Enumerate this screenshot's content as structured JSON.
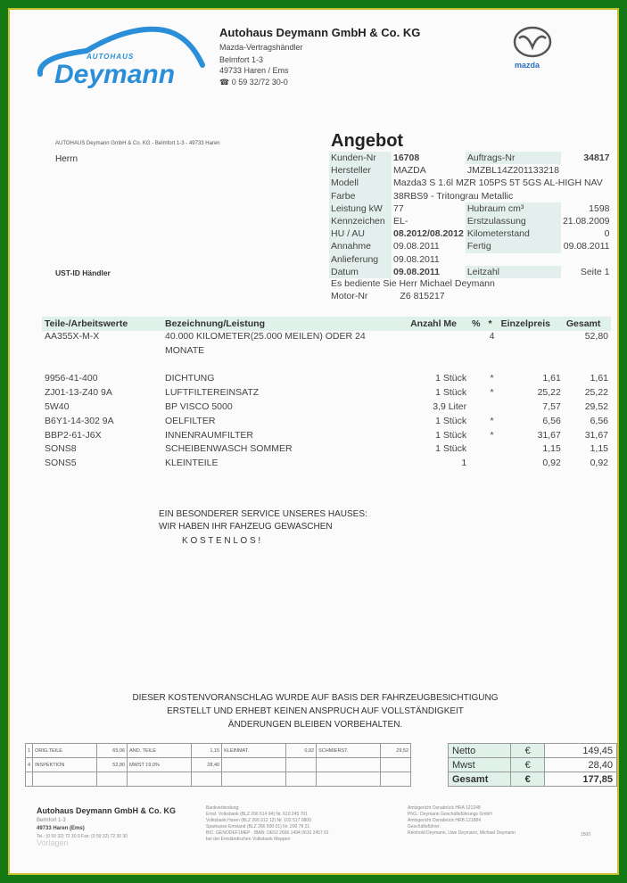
{
  "brand": {
    "logo_small": "AUTOHAUS",
    "logo_big": "Deymann",
    "mazda": "mazda",
    "accent": "#2a8fd8",
    "border": "#157a14"
  },
  "header": {
    "company": "Autohaus Deymann GmbH & Co. KG",
    "line1": "Mazda-Vertragshändler",
    "line2": "Belmfort 1-3",
    "line3": "49733 Haren / Ems",
    "phone": "0 59 32/72 30-0"
  },
  "address": {
    "sender": "AUTOHAUS Deymann GmbH & Co. KG - Belmfort 1-3 - 49733 Haren",
    "salutation": "Herrn",
    "ust": "UST-ID Händler"
  },
  "offer": {
    "title": "Angebot",
    "rows": [
      [
        "Kunden-Nr",
        "16708",
        "Auftrags-Nr",
        "34817"
      ],
      [
        "Hersteller",
        "MAZDA",
        "JMZBL14Z201133218",
        ""
      ],
      [
        "Modell",
        "Mazda3 S 1.6l MZR 105PS 5T 5GS AL-HIGH NAV",
        "",
        ""
      ],
      [
        "Farbe",
        "38RBS9 - Tritongrau Metallic",
        "",
        ""
      ],
      [
        "Leistung kW",
        "77",
        "Hubraum cm³",
        "1598"
      ],
      [
        "Kennzeichen",
        "EL-",
        "Erstzulassung",
        "21.08.2009"
      ],
      [
        "HU / AU",
        "08.2012/08.2012",
        "Kilometerstand",
        "0"
      ],
      [
        "Annahme",
        "09.08.2011",
        "Fertig",
        "09.08.2011"
      ],
      [
        "Anlieferung",
        "09.08.2011",
        "",
        ""
      ],
      [
        "Datum",
        "09.08.2011",
        "Leitzahl",
        "Seite   1"
      ]
    ],
    "served_by": "Es bediente Sie Herr Michael Deymann",
    "motor_label": "Motor-Nr",
    "motor_value": "Z6   815217"
  },
  "items": {
    "headers": [
      "Teile-/Arbeitswerte",
      "Bezeichnung/Leistung",
      "Anzahl Me",
      "%",
      "*",
      "Einzelpreis",
      "Gesamt"
    ],
    "rows": [
      [
        "AA355X-M-X",
        "40.000 KILOMETER(25.000 MEILEN) ODER 24",
        "",
        "",
        "4",
        "",
        "52,80"
      ],
      [
        "",
        "MONATE",
        "",
        "",
        "",
        "",
        ""
      ],
      [
        "",
        "",
        "",
        "",
        "",
        "",
        ""
      ],
      [
        "9956-41-400",
        "DICHTUNG",
        "1 Stück",
        "",
        "*",
        "1,61",
        "1,61"
      ],
      [
        "ZJ01-13-Z40 9A",
        "LUFTFILTEREINSATZ",
        "1 Stück",
        "",
        "*",
        "25,22",
        "25,22"
      ],
      [
        "5W40",
        "BP VISCO 5000",
        "3,9 Liter",
        "",
        "",
        "7,57",
        "29,52"
      ],
      [
        "B6Y1-14-302 9A",
        "OELFILTER",
        "1 Stück",
        "",
        "*",
        "6,56",
        "6,56"
      ],
      [
        "BBP2-61-J6X",
        "INNENRAUMFILTER",
        "1 Stück",
        "",
        "*",
        "31,67",
        "31,67"
      ],
      [
        "SONS8",
        "SCHEIBENWASCH SOMMER",
        "1 Stück",
        "",
        "",
        "1,15",
        "1,15"
      ],
      [
        "SONS5",
        "KLEINTEILE",
        "1",
        "",
        "",
        "0,92",
        "0,92"
      ]
    ]
  },
  "service": [
    "EIN BESONDERER SERVICE UNSERES HAUSES:",
    "WIR HABEN IHR FAHZEUG GEWASCHEN",
    "K O S T E N L O S  !"
  ],
  "disclaimer": [
    "DIESER KOSTENVORANSCHLAG WURDE AUF BASIS DER FAHRZEUGBESICHTIGUNG",
    "ERSTELLT UND ERHEBT KEINEN ANSPRUCH AUF VOLLSTÄNDIGKEIT",
    "ÄNDERUNGEN BLEIBEN VORBEHALTEN."
  ],
  "summary": {
    "rows": [
      [
        "1",
        "ORIG.TEILE",
        "65,06",
        "AND. TEILE",
        "1,15",
        "KLEINMAT.",
        "0,92",
        "SCHMIERST.",
        "29,52"
      ],
      [
        "4",
        "INSPEKTION",
        "52,80",
        "MWST 19,0%",
        "28,40",
        "",
        "",
        "",
        ""
      ],
      [
        "",
        "",
        "",
        "",
        "",
        "",
        "",
        "",
        ""
      ]
    ],
    "totals": [
      [
        "Netto",
        "€",
        "149,45"
      ],
      [
        "Mwst",
        "€",
        "28,40"
      ],
      [
        "Gesamt",
        "€",
        "177,85"
      ]
    ]
  },
  "footer": {
    "company": "Autohaus Deymann GmbH & Co. KG",
    "street": "Belmfort 1-3",
    "city": "49733 Haren (Ems)",
    "tel": "Tel.: (0 59 32) 72 30 0    Fax: (0 59 32) 72 30 30",
    "bank": [
      "Bankverbindung:",
      "Emsl. Volksbank (BLZ 266 614 94) Nr. 610 245 701",
      "Volksbank Haren (BLZ 266 912 12) Nr. 102 517 0800",
      "Sparkasse Emsland (BLZ 266 500 01) Nr. 200 78 21",
      "BIC: GENODEF1MEP · IBAN: DE53 2666 1494 0610 2457 01",
      "bei der Emsländischen Volksbank Meppen"
    ],
    "legal": [
      "Amtsgericht Osnabrück HRA 121248",
      "PhG.: Deymann Geschäftsführungs GmbH",
      "Amtsgericht Osnabrück HRB 121884",
      "Geschäftsführer:",
      "Reinhold Deymann, Uwe Deymann, Michael Deymann"
    ],
    "code": "1500",
    "watermark": "Vorlagen"
  }
}
